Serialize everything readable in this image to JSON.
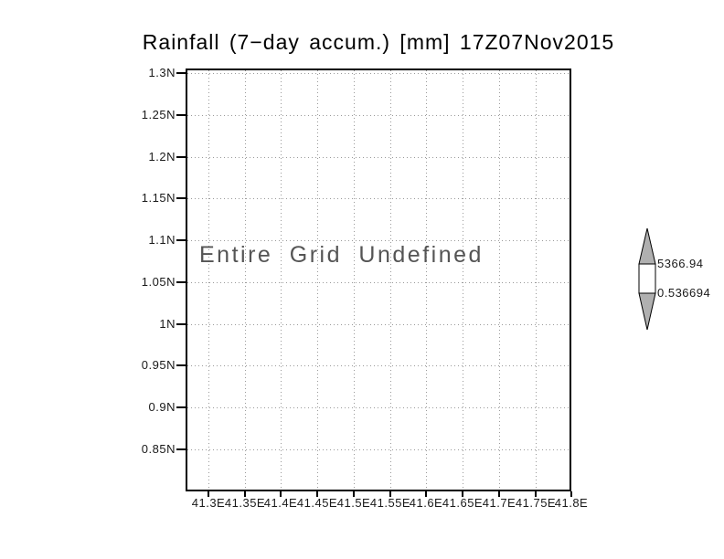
{
  "window": {
    "background": "#ffffff"
  },
  "chart_data": {
    "type": "heatmap",
    "title": "Rainfall (7−day accum.) [mm] 17Z07Nov2015",
    "status_message": "Entire Grid Undefined",
    "values": null,
    "grid": true,
    "x_axis": {
      "tick_labels": [
        "41.3E",
        "41.35E",
        "41.4E",
        "41.45E",
        "41.5E",
        "41.55E",
        "41.6E",
        "41.65E",
        "41.7E",
        "41.75E",
        "41.8E"
      ],
      "min": 41.3,
      "max": 41.8,
      "unit": "degrees east"
    },
    "y_axis": {
      "tick_labels": [
        "1.3N",
        "1.25N",
        "1.2N",
        "1.15N",
        "1.1N",
        "1.05N",
        "1N",
        "0.95N",
        "0.9N",
        "0.85N"
      ],
      "min": 0.85,
      "max": 1.3,
      "unit": "degrees north"
    },
    "colorbar": {
      "position": "right",
      "max_label": "5366.94",
      "min_label": "0.536694",
      "arrow_color": "#b0b0b0",
      "box_color": "#ffffff",
      "outline_color": "#000000"
    },
    "frame_color": "#000000",
    "gridline_color": "#9a9a9a"
  }
}
